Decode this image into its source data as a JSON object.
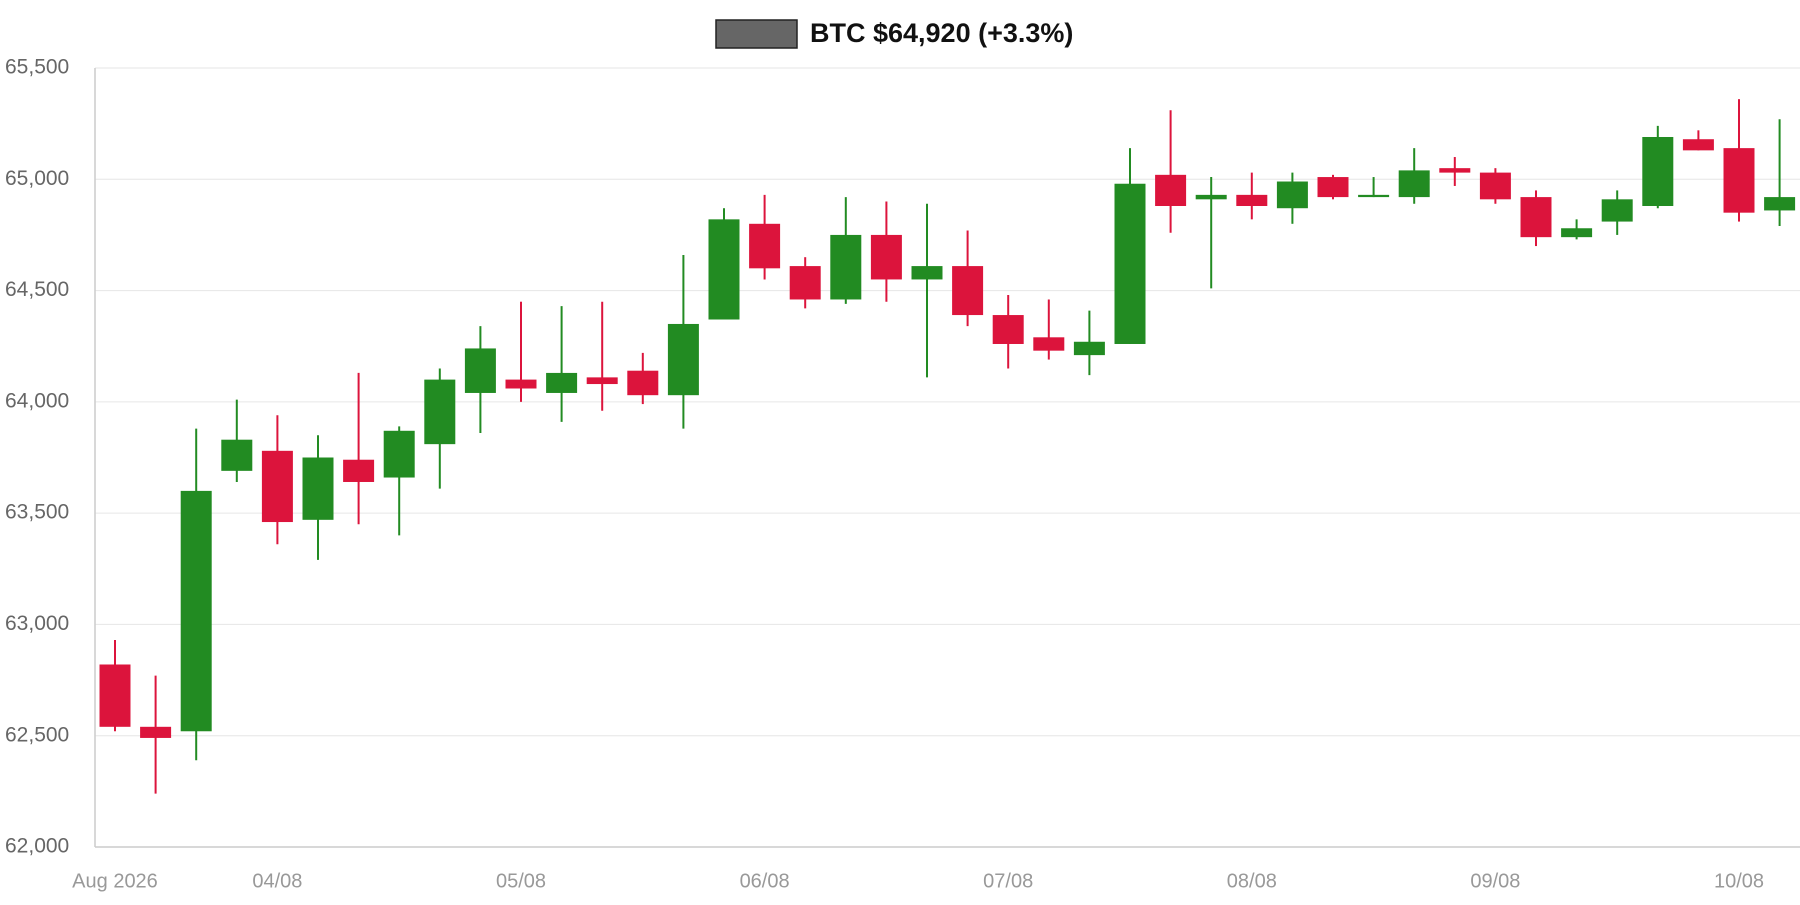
{
  "chart_data": {
    "type": "candlestick",
    "categories": [
      "Aug 2026",
      null,
      null,
      null,
      "04/08",
      null,
      null,
      null,
      null,
      null,
      "05/08",
      null,
      null,
      null,
      null,
      null,
      "06/08",
      null,
      null,
      null,
      null,
      null,
      "07/08",
      null,
      null,
      null,
      null,
      null,
      "08/08",
      null,
      null,
      null,
      null,
      null,
      "09/08",
      null,
      null,
      null,
      null,
      null,
      "10/08",
      null
    ],
    "series": [
      {
        "name": "BTC $64,920 (+3.3%)",
        "color": "#666666",
        "up_color": "#228b22",
        "down_color": "#dc143c",
        "open": [
          62820,
          62540,
          62520,
          63690,
          63780,
          63470,
          63740,
          63660,
          63810,
          64040,
          64100,
          64040,
          64110,
          64140,
          64030,
          64370,
          64800,
          64610,
          64460,
          64750,
          64550,
          64610,
          64390,
          64290,
          64210,
          64260,
          65020,
          64910,
          64930,
          64870,
          65010,
          64920,
          64920,
          65050,
          65030,
          64920,
          64740,
          64810,
          64880,
          65180,
          65140,
          64860
        ],
        "high": [
          62930,
          62770,
          63880,
          64010,
          63940,
          63850,
          64130,
          63890,
          64150,
          64340,
          64450,
          64430,
          64450,
          64220,
          64660,
          64870,
          64930,
          64650,
          64920,
          64900,
          64890,
          64770,
          64480,
          64460,
          64410,
          65140,
          65310,
          65010,
          65030,
          65030,
          65020,
          65010,
          65140,
          65100,
          65050,
          64950,
          64820,
          64950,
          65240,
          65220,
          65360,
          65270
        ],
        "low": [
          62520,
          62240,
          62390,
          63640,
          63360,
          63290,
          63450,
          63400,
          63610,
          63860,
          64000,
          63910,
          63960,
          63990,
          63880,
          64370,
          64550,
          64420,
          64440,
          64450,
          64110,
          64340,
          64150,
          64190,
          64120,
          64260,
          64760,
          64510,
          64820,
          64800,
          64910,
          64920,
          64890,
          64970,
          64890,
          64700,
          64730,
          64750,
          64870,
          65130,
          64810,
          64790
        ],
        "close": [
          62540,
          62490,
          63600,
          63830,
          63460,
          63750,
          63640,
          63870,
          64100,
          64240,
          64060,
          64130,
          64080,
          64030,
          64350,
          64820,
          64600,
          64460,
          64750,
          64550,
          64610,
          64390,
          64260,
          64230,
          64270,
          64980,
          64880,
          64930,
          64880,
          64990,
          64920,
          64930,
          65040,
          65030,
          64910,
          64740,
          64780,
          64910,
          65190,
          65130,
          64850,
          64920
        ]
      }
    ],
    "ylim": [
      62000,
      65500
    ],
    "yticks": [
      {
        "value": 62000,
        "label": "62,000"
      },
      {
        "value": 62500,
        "label": "62,500"
      },
      {
        "value": 63000,
        "label": "63,000"
      },
      {
        "value": 63500,
        "label": "63,500"
      },
      {
        "value": 64000,
        "label": "64,000"
      },
      {
        "value": 64500,
        "label": "64,500"
      },
      {
        "value": 65000,
        "label": "65,000"
      },
      {
        "value": 65500,
        "label": "65,500"
      }
    ],
    "grid": true
  }
}
